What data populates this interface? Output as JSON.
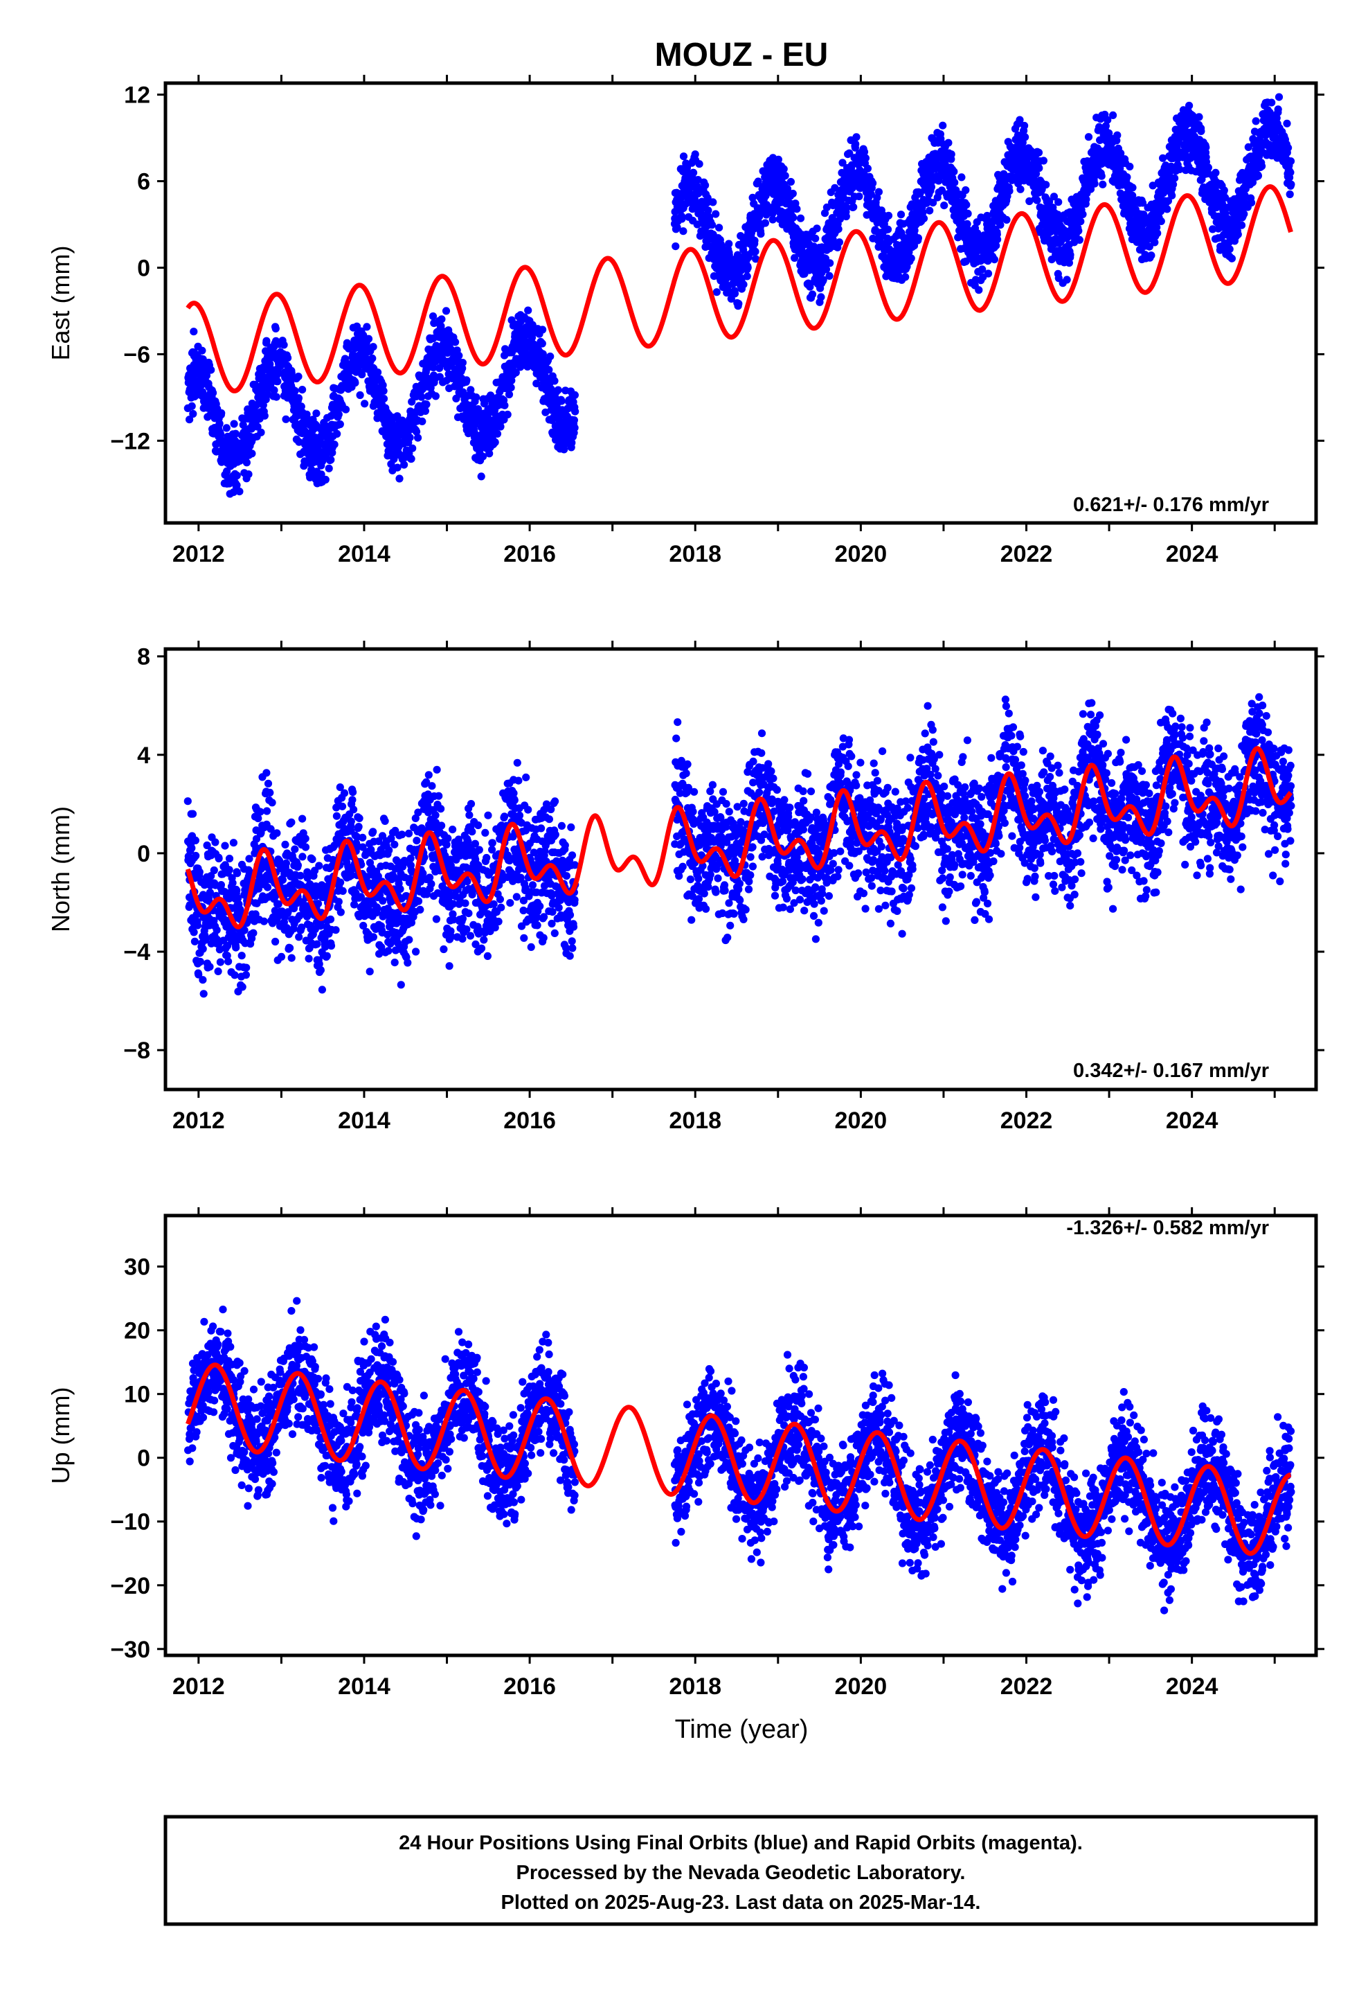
{
  "title": "MOUZ - EU",
  "footer": {
    "line1": "24 Hour Positions Using Final Orbits (blue) and Rapid Orbits (magenta).",
    "line2": "Processed by the Nevada Geodetic Laboratory.",
    "line3": "Plotted on 2025-Aug-23. Last data on 2025-Mar-14."
  },
  "colors": {
    "final_orbits": "#0000ff",
    "model_fit": "#ff0000",
    "frame": "#000000"
  },
  "chart_data": [
    {
      "type": "scatter",
      "component": "east",
      "ylabel": "East (mm)",
      "rate_text": "0.621+/- 0.176 mm/yr",
      "xlim": [
        2011.6,
        2025.5
      ],
      "ylim": [
        -17.7,
        12.8
      ],
      "xticks": [
        2012,
        2014,
        2016,
        2018,
        2020,
        2022,
        2024
      ],
      "xtick_labels": [
        "2012",
        "2014",
        "2016",
        "2018",
        "2020",
        "2022",
        "2024"
      ],
      "yticks": [
        -12,
        -6,
        0,
        6,
        12
      ],
      "ytick_labels": [
        "−12",
        "−6",
        "0",
        "6",
        "12"
      ],
      "data_gap": [
        2016.55,
        2017.75
      ],
      "offset": {
        "epoch": 2017.75,
        "size": 9.0
      },
      "series_points": {
        "x_start": 2011.87,
        "x_end": 2025.2,
        "trend_start": -10.6,
        "rate": 0.621,
        "annual_amplitude": 3.2,
        "annual_phase": 1.95,
        "semiannual_amplitude": 0.0,
        "scatter": 1.1
      },
      "fit_line": {
        "x_start": 2011.87,
        "x_end": 2025.2,
        "start_value": -5.7,
        "rate": 0.621,
        "annual_amplitude": 3.2,
        "annual_phase": 1.95,
        "semiannual_amplitude": 0.0,
        "offset_step": 0.0
      },
      "grid": false
    },
    {
      "type": "scatter",
      "component": "north",
      "ylabel": "North (mm)",
      "rate_text": "0.342+/- 0.167 mm/yr",
      "xlim": [
        2011.6,
        2025.5
      ],
      "ylim": [
        -9.6,
        8.3
      ],
      "xticks": [
        2012,
        2014,
        2016,
        2018,
        2020,
        2022,
        2024
      ],
      "xtick_labels": [
        "2012",
        "2014",
        "2016",
        "2018",
        "2020",
        "2022",
        "2024"
      ],
      "yticks": [
        -8,
        -4,
        0,
        4,
        8
      ],
      "ytick_labels": [
        "−8",
        "−4",
        "0",
        "4",
        "8"
      ],
      "data_gap": [
        2016.55,
        2017.75
      ],
      "offset": {
        "epoch": 2017.75,
        "size": 0.0
      },
      "series_points": {
        "x_start": 2011.87,
        "x_end": 2025.2,
        "trend_start": -1.9,
        "rate": 0.342,
        "annual_amplitude": 1.0,
        "annual_phase": 2.6,
        "semiannual_amplitude": 0.8,
        "scatter": 1.3
      },
      "fit_line": {
        "x_start": 2011.87,
        "x_end": 2025.2,
        "start_value": -1.9,
        "rate": 0.342,
        "annual_amplitude": 1.0,
        "annual_phase": 2.6,
        "semiannual_amplitude": 0.8,
        "offset_step": 0.0
      },
      "grid": false
    },
    {
      "type": "scatter",
      "component": "up",
      "ylabel": "Up (mm)",
      "rate_text": "-1.326+/- 0.582 mm/yr",
      "xlabel": "Time (year)",
      "xlim": [
        2011.6,
        2025.5
      ],
      "ylim": [
        -31.0,
        38.0
      ],
      "xticks": [
        2012,
        2014,
        2016,
        2018,
        2020,
        2022,
        2024
      ],
      "xtick_labels": [
        "2012",
        "2014",
        "2016",
        "2018",
        "2020",
        "2022",
        "2024"
      ],
      "yticks": [
        -30,
        -20,
        -10,
        0,
        10,
        20,
        30
      ],
      "ytick_labels": [
        "−30",
        "−20",
        "−10",
        "0",
        "10",
        "20",
        "30"
      ],
      "data_gap": [
        2016.55,
        2017.75
      ],
      "offset": {
        "epoch": 2017.75,
        "size": 0.0
      },
      "series_points": {
        "x_start": 2011.87,
        "x_end": 2025.2,
        "trend_start": 8.5,
        "rate": -1.326,
        "annual_amplitude": 6.5,
        "annual_phase": 0.3,
        "semiannual_amplitude": 0.0,
        "scatter": 4.2
      },
      "fit_line": {
        "x_start": 2011.87,
        "x_end": 2025.2,
        "start_value": 8.5,
        "rate": -1.326,
        "annual_amplitude": 6.5,
        "annual_phase": 0.3,
        "semiannual_amplitude": 0.0,
        "offset_step": 0.0
      },
      "grid": false
    }
  ]
}
